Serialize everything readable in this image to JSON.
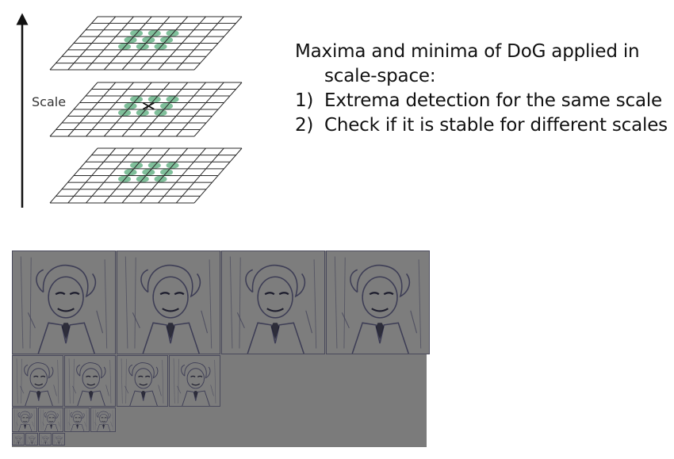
{
  "figure": {
    "axis_label": "Scale",
    "colors": {
      "grid_stroke": "#2a2a2a",
      "extrema_fill": "#7fbf9a",
      "arrow": "#111111"
    },
    "icons": {
      "sample_point": "green-ellipse",
      "center_pixel": "x-mark"
    }
  },
  "caption": {
    "line1": "Maxima and minima of DoG applied in",
    "line2": "scale-space:",
    "item1_num": "1)",
    "item1_text": "Extrema detection for the same scale",
    "item2_num": "2)",
    "item2_text": "Check if it is stable for different scales"
  },
  "dog_pyramid": {
    "octaves": 4,
    "images_per_octave": 4,
    "background_color": "#7b7b7b",
    "edge_color": "#3d3d55"
  }
}
